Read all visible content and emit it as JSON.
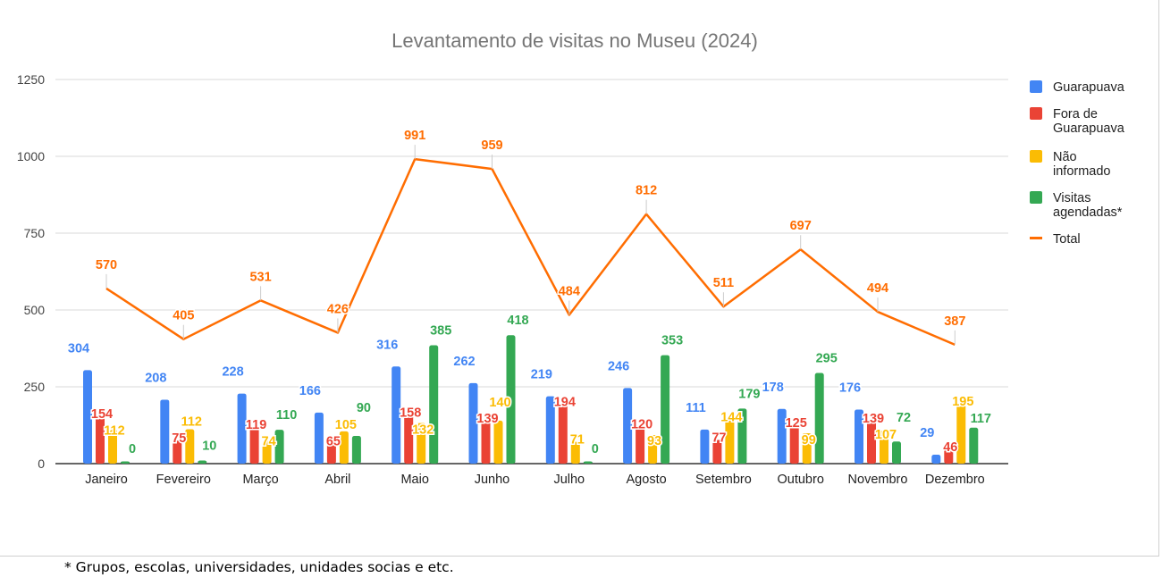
{
  "chart_data": {
    "type": "bar+line",
    "title": "Levantamento de visitas no Museu (2024)",
    "categories": [
      "Janeiro",
      "Fevereiro",
      "Março",
      "Abril",
      "Maio",
      "Junho",
      "Julho",
      "Agosto",
      "Setembro",
      "Outubro",
      "Novembro",
      "Dezembro"
    ],
    "series": [
      {
        "name": "Guarapuava",
        "type": "bar",
        "color": "#4285f4",
        "values": [
          304,
          208,
          228,
          166,
          316,
          262,
          219,
          246,
          111,
          178,
          176,
          29
        ]
      },
      {
        "name": "Fora de Guarapuava",
        "type": "bar",
        "color": "#ea4335",
        "values": [
          154,
          75,
          119,
          65,
          158,
          139,
          194,
          120,
          77,
          125,
          139,
          46
        ]
      },
      {
        "name": "Não informado",
        "type": "bar",
        "color": "#fbbc04",
        "values": [
          112,
          112,
          74,
          105,
          132,
          140,
          71,
          93,
          144,
          99,
          107,
          195
        ]
      },
      {
        "name": "Visitas agendadas*",
        "type": "bar",
        "color": "#34a853",
        "values": [
          0,
          10,
          110,
          90,
          385,
          418,
          0,
          353,
          179,
          295,
          72,
          117
        ]
      },
      {
        "name": "Total",
        "type": "line",
        "color": "#ff6d01",
        "values": [
          570,
          405,
          531,
          426,
          991,
          959,
          484,
          812,
          511,
          697,
          494,
          387
        ]
      }
    ],
    "legend_lines": [
      [
        "Guarapuava"
      ],
      [
        "Fora de",
        "Guarapuava"
      ],
      [
        "Não",
        "informado"
      ],
      [
        "Visitas",
        "agendadas*"
      ],
      [
        "Total"
      ]
    ],
    "ylim": [
      0,
      1250
    ],
    "yticks": [
      0,
      250,
      500,
      750,
      1000,
      1250
    ],
    "grid": true,
    "legend_position": "right",
    "data_labels": true
  },
  "footnote": "* Grupos, escolas, universidades, unidades socias e etc."
}
